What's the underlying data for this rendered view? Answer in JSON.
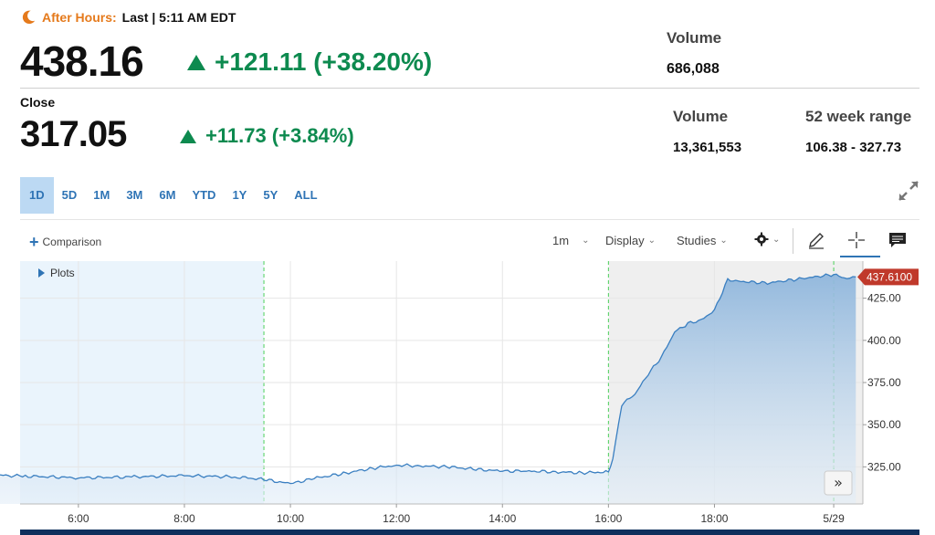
{
  "after_hours": {
    "label": "After Hours:",
    "last_text": "Last | 5:11 AM EDT",
    "price": "438.16",
    "change": "+121.11 (+38.20%)",
    "volume_label": "Volume",
    "volume_value": "686,088"
  },
  "close": {
    "label": "Close",
    "price": "317.05",
    "change": "+11.73 (+3.84%)",
    "volume_label": "Volume",
    "volume_value": "13,361,553",
    "range_label": "52 week range",
    "range_value": "106.38 - 327.73"
  },
  "periods": [
    "1D",
    "5D",
    "1M",
    "3M",
    "6M",
    "YTD",
    "1Y",
    "5Y",
    "ALL"
  ],
  "active_period": "1D",
  "toolbar": {
    "comparison": "Comparison",
    "interval": "1m",
    "display": "Display",
    "studies": "Studies",
    "icons": [
      "gear-icon",
      "pencil-icon",
      "crosshair-icon",
      "comment-icon"
    ]
  },
  "colors": {
    "accent": "#2f74b5",
    "positive": "#0d8a4f",
    "after_hours": "#e57a1c",
    "price_tag": "#c0392b",
    "line": "#3a7fc1"
  },
  "chart_data": {
    "type": "area",
    "plots_label": "Plots",
    "x_tick_labels": [
      "6:00",
      "8:00",
      "10:00",
      "12:00",
      "14:00",
      "16:00",
      "18:00",
      "5/29"
    ],
    "y_tick_labels": [
      "425.00",
      "400.00",
      "375.00",
      "350.00",
      "325.00"
    ],
    "ylim": [
      303,
      447
    ],
    "current_value": 437.61,
    "current_label": "437.6100",
    "series": [
      {
        "x": [
          "4:00",
          "5:00",
          "6:00",
          "7:00",
          "8:00",
          "9:00",
          "9:30",
          "10:00",
          "10:30",
          "11:00",
          "11:30",
          "12:00",
          "12:30",
          "13:00",
          "13:30",
          "14:00",
          "14:30",
          "15:00",
          "15:30",
          "16:00",
          "16:05",
          "16:15",
          "16:30",
          "16:45",
          "17:00",
          "17:15",
          "17:30",
          "17:45",
          "18:00",
          "18:15",
          "18:30",
          "18:45",
          "19:00",
          "19:15",
          "19:30",
          "19:45",
          "20:00",
          "20:15",
          "20:30",
          "20:40"
        ],
        "values": [
          320.5,
          319.5,
          318.5,
          319.0,
          319.8,
          319.0,
          317.5,
          315.0,
          318.5,
          321.0,
          324.0,
          326.0,
          325.5,
          325.0,
          323.5,
          322.5,
          322.5,
          322.0,
          321.5,
          322.0,
          330.0,
          362.0,
          368.0,
          380.0,
          390.0,
          405.0,
          410.0,
          412.0,
          418.0,
          436.0,
          435.0,
          434.5,
          434.0,
          435.0,
          436.0,
          437.0,
          438.0,
          439.0,
          436.5,
          437.61
        ]
      }
    ],
    "grid": true
  }
}
